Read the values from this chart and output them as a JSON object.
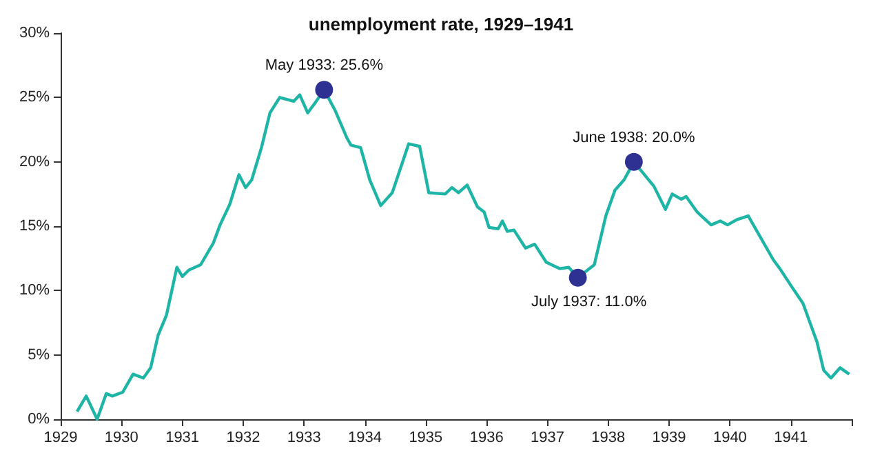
{
  "chart_data": {
    "type": "line",
    "title": "unemployment rate, 1929–1941",
    "xlim": [
      1929,
      1942
    ],
    "xticks": [
      1929,
      1930,
      1931,
      1932,
      1933,
      1934,
      1935,
      1936,
      1937,
      1938,
      1939,
      1940,
      1941,
      {
        "value": 1942,
        "label": null
      }
    ],
    "ylim": [
      0,
      30
    ],
    "yticks": [
      {
        "value": 0,
        "label": "0%"
      },
      {
        "value": 5,
        "label": "5%"
      },
      {
        "value": 10,
        "label": "10%"
      },
      {
        "value": 15,
        "label": "15%"
      },
      {
        "value": 20,
        "label": "20%"
      },
      {
        "value": 25,
        "label": "25%"
      },
      {
        "value": 30,
        "label": "30%"
      }
    ],
    "grid": false,
    "series": [
      {
        "color": "#1fb5a6",
        "marker": "none",
        "x": [
          1929.27,
          1929.42,
          1929.6,
          1929.75,
          1929.85,
          1930.02,
          1930.19,
          1930.36,
          1930.48,
          1930.6,
          1930.74,
          1930.91,
          1931.0,
          1931.11,
          1931.3,
          1931.51,
          1931.62,
          1931.78,
          1931.93,
          1932.04,
          1932.14,
          1932.3,
          1932.44,
          1932.6,
          1932.83,
          1932.93,
          1933.06,
          1933.17,
          1933.33,
          1933.51,
          1933.7,
          1933.77,
          1933.93,
          1934.08,
          1934.26,
          1934.45,
          1934.72,
          1934.9,
          1935.05,
          1935.32,
          1935.43,
          1935.54,
          1935.68,
          1935.85,
          1935.96,
          1936.04,
          1936.19,
          1936.26,
          1936.34,
          1936.45,
          1936.64,
          1936.79,
          1936.98,
          1937.2,
          1937.35,
          1937.5,
          1937.77,
          1937.96,
          1938.11,
          1938.26,
          1938.42,
          1938.75,
          1938.94,
          1939.05,
          1939.2,
          1939.28,
          1939.46,
          1939.69,
          1939.84,
          1939.96,
          1940.11,
          1940.3,
          1940.71,
          1940.82,
          1941.0,
          1941.2,
          1941.43,
          1941.54,
          1941.66,
          1941.81,
          1941.96
        ],
        "values": [
          0.6,
          1.8,
          0.0,
          2.0,
          1.8,
          2.1,
          3.5,
          3.2,
          4.0,
          6.5,
          8.1,
          11.8,
          11.1,
          11.6,
          12.0,
          13.7,
          15.1,
          16.7,
          19.0,
          18.0,
          18.6,
          21.1,
          23.8,
          25.0,
          24.7,
          25.2,
          23.8,
          24.5,
          25.6,
          24.0,
          21.9,
          21.3,
          21.1,
          18.6,
          16.6,
          17.6,
          21.4,
          21.2,
          17.6,
          17.5,
          18.0,
          17.6,
          18.2,
          16.5,
          16.1,
          14.9,
          14.8,
          15.4,
          14.6,
          14.7,
          13.3,
          13.6,
          12.2,
          11.7,
          11.8,
          11.0,
          12.0,
          15.8,
          17.8,
          18.6,
          20.0,
          18.1,
          16.3,
          17.5,
          17.1,
          17.3,
          16.1,
          15.1,
          15.4,
          15.1,
          15.5,
          15.8,
          12.4,
          11.7,
          10.4,
          9.0,
          6.0,
          3.8,
          3.2,
          4.0,
          3.5
        ]
      },
      {
        "type": "scatter",
        "color": "#2e3192",
        "marker": "circle",
        "x": [
          1933.33,
          1937.5,
          1938.42
        ],
        "values": [
          25.6,
          11.0,
          20.0
        ]
      }
    ],
    "annotations": [
      {
        "text": "May 1933: 25.6%",
        "x": 1933.33,
        "y": 25.6
      },
      {
        "text": "July 1937: 11.0%",
        "x": 1937.5,
        "y": 11.0
      },
      {
        "text": "June 1938: 20.0%",
        "x": 1938.42,
        "y": 20.0
      }
    ]
  }
}
